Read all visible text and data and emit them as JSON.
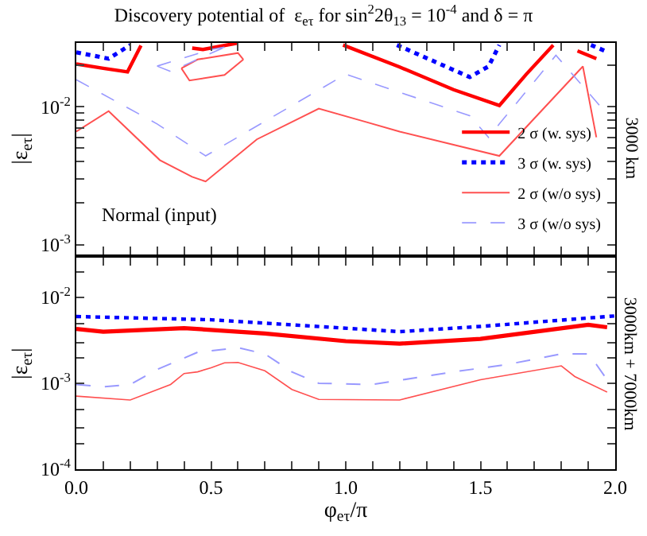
{
  "chart_data": [
    {
      "type": "line",
      "title": "Discovery potential of  ε$_{eτ}$ for sin$^{2}$2θ$_{13}$ = 10$^{-4}$ and δ = π",
      "ylabel": "|ε$_{eτ}$|",
      "log": true,
      "xlim": [
        0,
        2
      ],
      "ylim": [
        0.00085,
        0.029
      ],
      "xticks": [
        {
          "value": 0,
          "label": null
        },
        {
          "value": 0.1,
          "label": null
        },
        {
          "value": 0.2,
          "label": null
        },
        {
          "value": 0.3,
          "label": null
        },
        {
          "value": 0.4,
          "label": null
        },
        {
          "value": 0.5,
          "label": null
        },
        {
          "value": 0.6,
          "label": null
        },
        {
          "value": 0.7,
          "label": null
        },
        {
          "value": 0.8,
          "label": null
        },
        {
          "value": 0.9,
          "label": null
        },
        {
          "value": 1.0,
          "label": null
        },
        {
          "value": 1.1,
          "label": null
        },
        {
          "value": 1.2,
          "label": null
        },
        {
          "value": 1.3,
          "label": null
        },
        {
          "value": 1.4,
          "label": null
        },
        {
          "value": 1.5,
          "label": null
        },
        {
          "value": 1.6,
          "label": null
        },
        {
          "value": 1.7,
          "label": null
        },
        {
          "value": 1.8,
          "label": null
        },
        {
          "value": 1.9,
          "label": null
        },
        {
          "value": 2.0,
          "label": null
        }
      ],
      "yticks": [
        {
          "value": 0.001,
          "label": "10$^{-3}$"
        },
        {
          "value": 0.002,
          "label": null
        },
        {
          "value": 0.003,
          "label": null
        },
        {
          "value": 0.004,
          "label": null
        },
        {
          "value": 0.005,
          "label": null
        },
        {
          "value": 0.006,
          "label": null
        },
        {
          "value": 0.007,
          "label": null
        },
        {
          "value": 0.008,
          "label": null
        },
        {
          "value": 0.009,
          "label": null
        },
        {
          "value": 0.01,
          "label": "10$^{-2}$"
        },
        {
          "value": 0.02,
          "label": null
        }
      ],
      "tick_labels": "y",
      "legend": "bottom right",
      "annotations": [
        "Normal (input)",
        "3000 km"
      ],
      "series": [
        {
          "name": "2 σ (w. sys)",
          "color": "#ff0000",
          "line_style": "solid",
          "x": [
            0,
            0.1,
            0.19,
            0.24,
            null,
            0.43,
            0.47,
            0.6,
            null,
            0.99,
            1.2,
            1.4,
            1.57,
            1.67,
            1.77,
            null,
            1.86,
            1.93
          ],
          "values": [
            0.0204,
            0.019,
            0.0179,
            0.0278,
            null,
            0.0266,
            0.026,
            0.029,
            null,
            0.028,
            0.0194,
            0.0133,
            0.0102,
            0.0172,
            0.028,
            null,
            0.0254,
            0.0223
          ]
        },
        {
          "name": "3 σ (w. sys)",
          "color": "#0000ff",
          "line_style": "dotted",
          "x": [
            0,
            0.12,
            0.2,
            null,
            1.19,
            1.46,
            1.53,
            1.57,
            null,
            1.91,
            1.96
          ],
          "values": [
            0.0248,
            0.0223,
            0.028,
            null,
            0.028,
            0.0164,
            0.0196,
            0.028,
            null,
            0.028,
            0.0255
          ]
        },
        {
          "name": "2 σ (w/o sys)",
          "color": "#ff5050",
          "line_style": "solid",
          "x": [
            0,
            0.12,
            0.31,
            0.43,
            0.48,
            0.67,
            0.9,
            1.07,
            1.2,
            1.57,
            1.88,
            1.93
          ],
          "values": [
            0.0066,
            0.0093,
            0.0041,
            0.0031,
            0.00287,
            0.0058,
            0.0097,
            0.0078,
            0.0066,
            0.0044,
            0.0196,
            0.006
          ]
        },
        {
          "name": "3 σ (w/o sys)",
          "color": "#9999ff",
          "line_style": "dashed",
          "x": [
            0,
            0.3,
            0.48,
            1.0,
            1.46,
            1.53,
            1.57,
            1.78,
            1.95
          ],
          "values": [
            0.0157,
            0.0075,
            0.0044,
            0.0172,
            0.0086,
            0.006,
            0.0075,
            0.0236,
            0.0098
          ]
        },
        {
          "color": "#ff5050",
          "line_style": "solid",
          "x": [
            0.39,
            0.45,
            0.6,
            0.62
          ],
          "values": [
            0.019,
            0.022,
            0.0245,
            0.022
          ]
        },
        {
          "color": "#ff5050",
          "line_style": "solid",
          "x": [
            0.39,
            0.42,
            0.55,
            0.62
          ],
          "values": [
            0.019,
            0.0155,
            0.017,
            0.022
          ]
        },
        {
          "color": "#9999ff",
          "line_style": "dashed",
          "x": [
            0.3,
            0.5,
            0.55
          ],
          "values": [
            0.0197,
            0.026,
            0.027
          ]
        },
        {
          "color": "#9999ff",
          "line_style": "dashed",
          "x": [
            0.3,
            0.35,
            0.55
          ],
          "values": [
            0.0197,
            0.018,
            0.027
          ]
        }
      ]
    },
    {
      "type": "line",
      "xlabel": "φ$_{eτ}$/π",
      "ylabel": "|ε$_{eτ}$|",
      "log": true,
      "xlim": [
        0,
        2
      ],
      "ylim": [
        0.0001,
        0.029
      ],
      "xticks": [
        {
          "value": 0,
          "label": "0.0"
        },
        {
          "value": 0.1,
          "label": null
        },
        {
          "value": 0.2,
          "label": null
        },
        {
          "value": 0.3,
          "label": null
        },
        {
          "value": 0.4,
          "label": null
        },
        {
          "value": 0.5,
          "label": "0.5"
        },
        {
          "value": 0.6,
          "label": null
        },
        {
          "value": 0.7,
          "label": null
        },
        {
          "value": 0.8,
          "label": null
        },
        {
          "value": 0.9,
          "label": null
        },
        {
          "value": 1.0,
          "label": "1.0"
        },
        {
          "value": 1.1,
          "label": null
        },
        {
          "value": 1.2,
          "label": null
        },
        {
          "value": 1.3,
          "label": null
        },
        {
          "value": 1.4,
          "label": null
        },
        {
          "value": 1.5,
          "label": "1.5"
        },
        {
          "value": 1.6,
          "label": null
        },
        {
          "value": 1.7,
          "label": null
        },
        {
          "value": 1.8,
          "label": null
        },
        {
          "value": 1.9,
          "label": null
        },
        {
          "value": 2.0,
          "label": "2.0"
        }
      ],
      "yticks": [
        {
          "value": 0.0001,
          "label": "10$^{-4}$"
        },
        {
          "value": 0.0002,
          "label": null
        },
        {
          "value": 0.0003,
          "label": null
        },
        {
          "value": 0.0005,
          "label": null
        },
        {
          "value": 0.001,
          "label": "10$^{-3}$"
        },
        {
          "value": 0.002,
          "label": null
        },
        {
          "value": 0.003,
          "label": null
        },
        {
          "value": 0.005,
          "label": null
        },
        {
          "value": 0.01,
          "label": "10$^{-2}$"
        },
        {
          "value": 0.02,
          "label": null
        }
      ],
      "annotations": [
        "3000km + 7000km"
      ],
      "series": [
        {
          "color": "#0000ff",
          "line_style": "dotted",
          "x": [
            0,
            0.5,
            1.2,
            1.5,
            2.0
          ],
          "values": [
            0.006,
            0.0055,
            0.004,
            0.0046,
            0.0061
          ]
        },
        {
          "color": "#ff0000",
          "line_style": "solid",
          "x": [
            0,
            0.1,
            0.4,
            0.7,
            1.0,
            1.2,
            1.5,
            1.9,
            1.97
          ],
          "values": [
            0.0043,
            0.004,
            0.0044,
            0.0038,
            0.0031,
            0.0029,
            0.0033,
            0.0048,
            0.0045
          ]
        },
        {
          "color": "#9999ff",
          "line_style": "dashed",
          "x": [
            0,
            0.1,
            0.2,
            0.3,
            0.45,
            0.6,
            0.7,
            0.8,
            0.9,
            1.1,
            1.4,
            1.6,
            1.8,
            1.9,
            1.93,
            1.97
          ],
          "values": [
            0.00097,
            0.00091,
            0.00097,
            0.00145,
            0.0023,
            0.0026,
            0.0022,
            0.00136,
            0.001,
            0.00097,
            0.00136,
            0.00166,
            0.0022,
            0.0022,
            0.00166,
            0.0011
          ]
        },
        {
          "color": "#ff5050",
          "line_style": "solid",
          "x": [
            0,
            0.2,
            0.35,
            0.4,
            0.45,
            0.5,
            0.55,
            0.6,
            0.7,
            0.8,
            0.9,
            1.2,
            1.5,
            1.8,
            1.85,
            1.97
          ],
          "values": [
            0.00071,
            0.00064,
            0.00097,
            0.0013,
            0.00136,
            0.00152,
            0.00173,
            0.00175,
            0.0014,
            0.00085,
            0.00065,
            0.00064,
            0.0011,
            0.0016,
            0.0012,
            0.00079
          ]
        }
      ]
    }
  ]
}
